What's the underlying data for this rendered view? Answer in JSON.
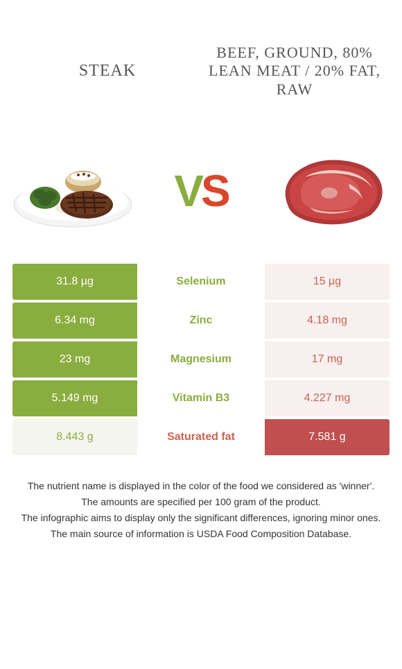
{
  "left_food": {
    "title": "STEAK"
  },
  "right_food": {
    "title": "BEEF, GROUND, 80% LEAN MEAT / 20% FAT, RAW"
  },
  "vs": {
    "v": "V",
    "s": "S"
  },
  "colors": {
    "green_dark": "#8aad3f",
    "green_light": "#f4f6ee",
    "red_dark": "#c14f4f",
    "red_light": "#f8efef",
    "green_text": "#8aad3f",
    "red_text": "#c9634f"
  },
  "rows": [
    {
      "left": "31.8 µg",
      "mid": "Selenium",
      "right": "15 µg",
      "winner": "left"
    },
    {
      "left": "6.34 mg",
      "mid": "Zinc",
      "right": "4.18 mg",
      "winner": "left"
    },
    {
      "left": "23 mg",
      "mid": "Magnesium",
      "right": "17 mg",
      "winner": "left"
    },
    {
      "left": "5.149 mg",
      "mid": "Vitamin B3",
      "right": "4.227 mg",
      "winner": "left"
    },
    {
      "left": "8.443 g",
      "mid": "Saturated fat",
      "right": "7.581 g",
      "winner": "right"
    }
  ],
  "footer": {
    "l1": "The nutrient name is displayed in the color of the food we considered as 'winner'.",
    "l2": "The amounts are specified per 100 gram of the product.",
    "l3": "The infographic aims to display only the significant differences, ignoring minor ones.",
    "l4": "The main source of information is USDA Food Composition Database."
  }
}
